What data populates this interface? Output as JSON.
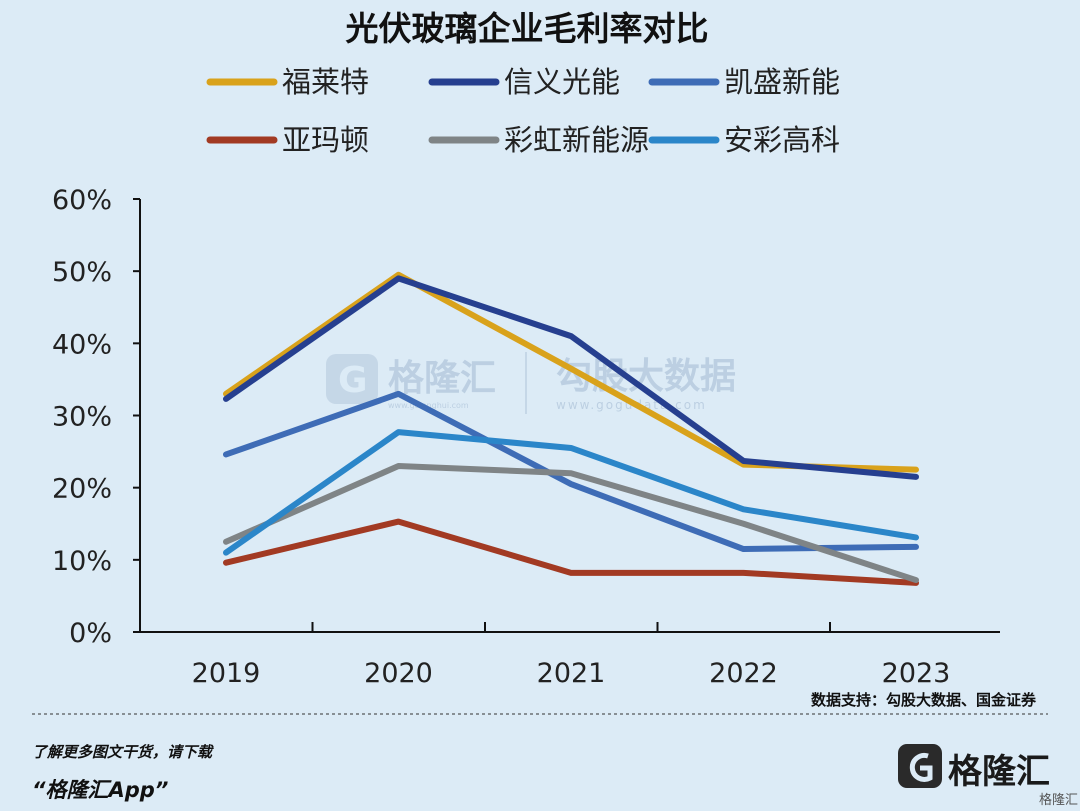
{
  "chart_data": {
    "type": "line",
    "title": "光伏玻璃企业毛利率对比",
    "categories": [
      "2019",
      "2020",
      "2021",
      "2022",
      "2023"
    ],
    "ylim": [
      0,
      60
    ],
    "yticks": [
      "0%",
      "10%",
      "20%",
      "30%",
      "40%",
      "50%",
      "60%"
    ],
    "grid": false,
    "legend_position": "top",
    "series": [
      {
        "name": "福莱特",
        "color": "#d9a21b",
        "values": [
          33,
          49.5,
          36.5,
          23.2,
          22.5
        ]
      },
      {
        "name": "信义光能",
        "color": "#263f8f",
        "values": [
          32.3,
          49,
          41,
          23.7,
          21.5
        ]
      },
      {
        "name": "凯盛新能",
        "color": "#3e6cb6",
        "values": [
          24.6,
          33,
          20.5,
          11.5,
          11.8
        ]
      },
      {
        "name": "亚玛顿",
        "color": "#a23a23",
        "values": [
          9.6,
          15.3,
          8.2,
          8.2,
          6.8
        ]
      },
      {
        "name": "彩虹新能源",
        "color": "#7f8486",
        "values": [
          12.5,
          23,
          22,
          15,
          7.2
        ]
      },
      {
        "name": "安彩高科",
        "color": "#2b86c9",
        "values": [
          11,
          27.7,
          25.5,
          17,
          13.1
        ]
      }
    ]
  },
  "source_text": "数据支持：勾股大数据、国金证券",
  "footer": {
    "line1": "了解更多图文干货，请下载",
    "line2": "“格隆汇App”"
  },
  "watermark": {
    "brand": "格隆汇",
    "brand_url": "www.gelonghui.com",
    "partner": "勾股大数据",
    "partner_url": "www.gogudata.com"
  },
  "logo": {
    "name": "格隆汇",
    "url": "格隆汇"
  }
}
